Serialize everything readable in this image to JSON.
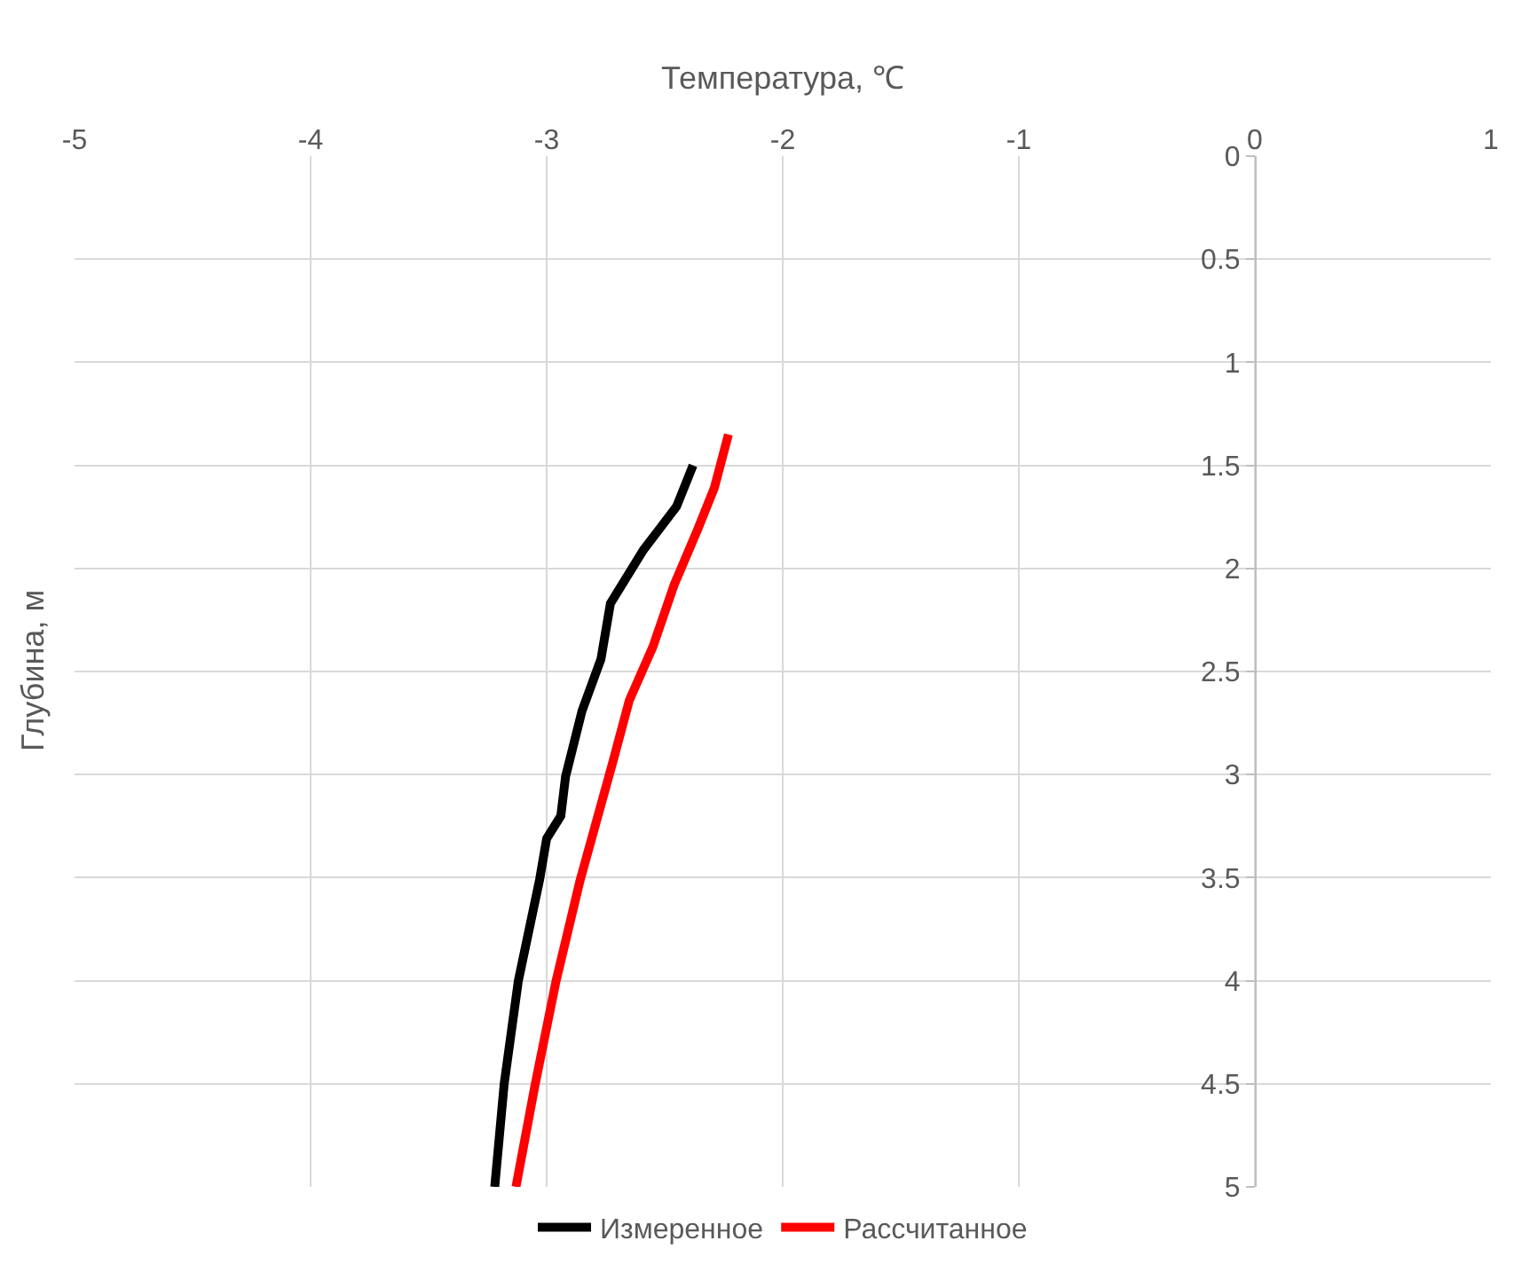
{
  "chart_data": {
    "type": "line",
    "xlabel": "Температура, ℃",
    "ylabel": "Глубина, м",
    "xlim": [
      -5,
      1
    ],
    "xticks": [
      -5,
      -4,
      -3,
      -2,
      -1,
      0,
      1
    ],
    "ylim": [
      5,
      0
    ],
    "yticks": [
      0,
      0.5,
      1,
      1.5,
      2,
      2.5,
      3,
      3.5,
      4,
      4.5,
      5
    ],
    "grid": true,
    "legend": "bottom",
    "marker": "none",
    "line_style": "solid",
    "series": [
      {
        "name": "Измеренное",
        "color": "#000000",
        "x": [
          -2.38,
          -2.45,
          -2.53,
          -2.59,
          -2.73,
          -2.77,
          -2.85,
          -2.92,
          -2.94,
          -3.0,
          -3.03,
          -3.12,
          -3.18,
          -3.22
        ],
        "values": [
          1.5,
          1.7,
          1.82,
          1.91,
          2.17,
          2.44,
          2.69,
          3.01,
          3.2,
          3.31,
          3.51,
          4.0,
          4.5,
          5.0
        ]
      },
      {
        "name": "Рассчитанное",
        "color": "#ff0000",
        "x": [
          -2.23,
          -2.29,
          -2.36,
          -2.46,
          -2.55,
          -2.65,
          -2.72,
          -2.86,
          -2.96,
          -3.05,
          -3.13
        ],
        "values": [
          1.35,
          1.61,
          1.81,
          2.08,
          2.38,
          2.64,
          2.94,
          3.52,
          4.0,
          4.51,
          5.0
        ]
      }
    ]
  }
}
